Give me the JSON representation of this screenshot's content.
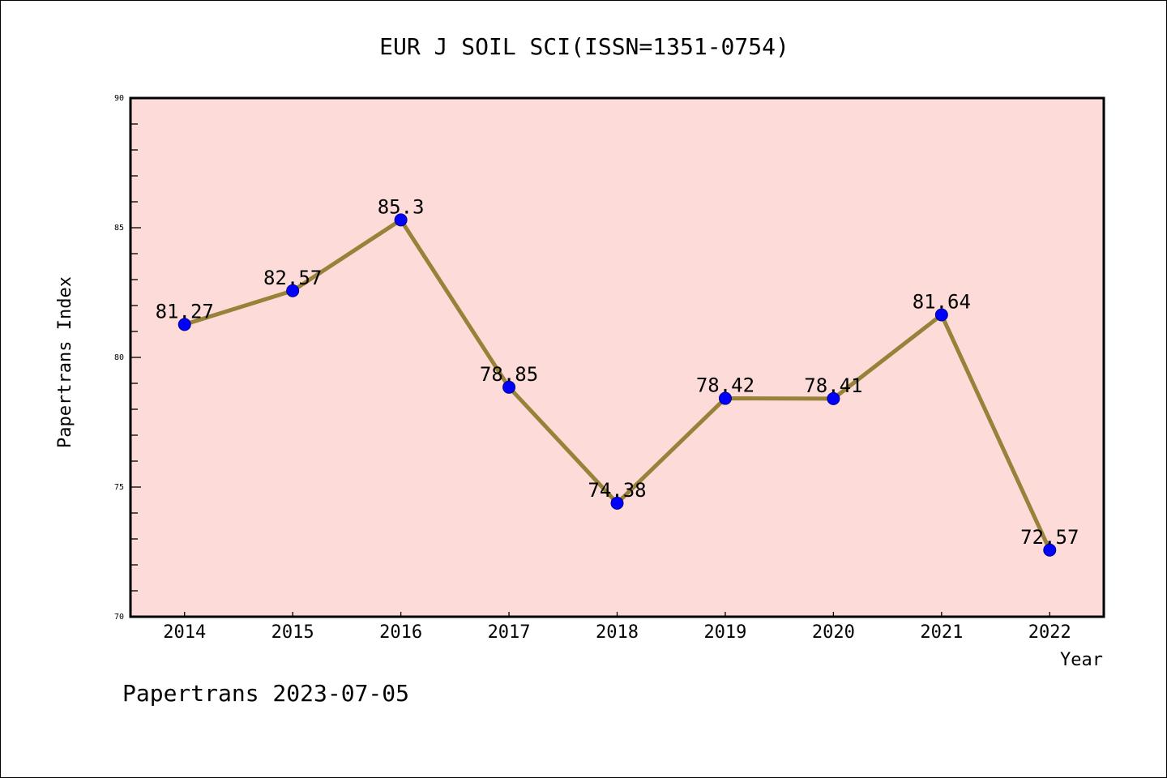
{
  "chart_data": {
    "type": "line",
    "title": "EUR J SOIL SCI(ISSN=1351-0754)",
    "xlabel": "Year",
    "ylabel": "Papertrans Index",
    "categories": [
      "2014",
      "2015",
      "2016",
      "2017",
      "2018",
      "2019",
      "2020",
      "2021",
      "2022"
    ],
    "series": [
      {
        "name": "Papertrans Index",
        "values": [
          81.27,
          82.57,
          85.3,
          78.85,
          74.38,
          78.42,
          78.41,
          81.64,
          72.57
        ],
        "labels": [
          "81.27",
          "82.57",
          "85.3",
          "78.85",
          "74.38",
          "78.42",
          "78.41",
          "81.64",
          "72.57"
        ]
      }
    ],
    "ylim": [
      70,
      90
    ],
    "yticks": [
      "70",
      "75",
      "80",
      "85",
      "90"
    ],
    "y_minor_step": 1,
    "grid": false,
    "colors": {
      "background": "#fddbd8",
      "line": "#98823a",
      "marker": "#0000ff"
    },
    "footer": "Papertrans 2023-07-05"
  }
}
